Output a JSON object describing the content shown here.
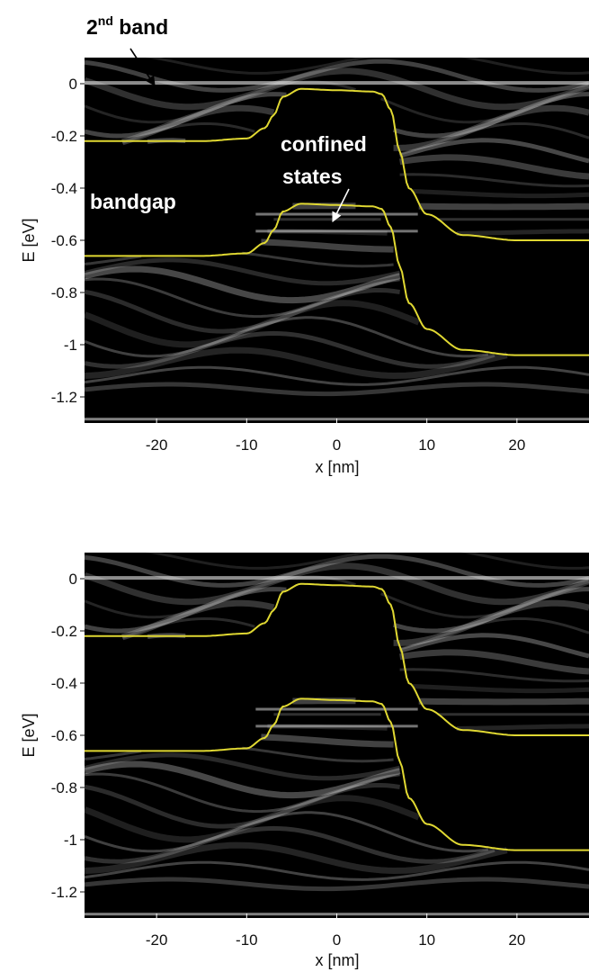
{
  "colors": {
    "band_edge": "#e0d832",
    "background": "#000000",
    "fringe": "#ffffff",
    "text": "#111111",
    "arrow_dark": "#000000",
    "arrow_light": "#ffffff"
  },
  "annotations": {
    "second_band": {
      "main": "2",
      "sup": "nd",
      "rest": " band"
    },
    "bandgap": "bandgap",
    "confined_line1": "confined",
    "confined_line2": "states"
  },
  "chart_data": [
    {
      "type": "heatmap",
      "title": "",
      "xlabel": "x [nm]",
      "ylabel": "E [eV]",
      "xlim": [
        -28,
        28
      ],
      "ylim": [
        -1.3,
        0.1
      ],
      "x_ticks": [
        -20,
        -10,
        0,
        10,
        20
      ],
      "x_tick_labels": [
        "-20",
        "-10",
        "0",
        "10",
        "20"
      ],
      "y_ticks": [
        0,
        -0.2,
        -0.4,
        -0.6,
        -0.8,
        -1,
        -1.2
      ],
      "y_tick_labels": [
        "0",
        "-0.2",
        "-0.4",
        "-0.6",
        "-0.8",
        "-1",
        "-1.2"
      ],
      "grid": false,
      "series": [
        {
          "x": [
            -28,
            -15,
            -10,
            -8,
            -7,
            -6,
            -4,
            0,
            4,
            5,
            6,
            7,
            8,
            10,
            14,
            20,
            28
          ],
          "y": [
            -0.22,
            -0.22,
            -0.21,
            -0.17,
            -0.12,
            -0.05,
            -0.02,
            -0.025,
            -0.03,
            -0.04,
            -0.1,
            -0.26,
            -0.4,
            -0.5,
            -0.58,
            -0.6,
            -0.6
          ]
        },
        {
          "x": [
            -28,
            -15,
            -10,
            -8,
            -7,
            -6,
            -4,
            0,
            4,
            5,
            6,
            7,
            8,
            10,
            14,
            20,
            28
          ],
          "y": [
            -0.66,
            -0.66,
            -0.65,
            -0.61,
            -0.56,
            -0.49,
            -0.46,
            -0.465,
            -0.47,
            -0.48,
            -0.55,
            -0.7,
            -0.84,
            -0.94,
            -1.02,
            -1.04,
            -1.04
          ]
        }
      ]
    },
    {
      "type": "heatmap",
      "title": "",
      "xlabel": "x [nm]",
      "ylabel": "E [eV]",
      "xlim": [
        -28,
        28
      ],
      "ylim": [
        -1.3,
        0.1
      ],
      "x_ticks": [
        -20,
        -10,
        0,
        10,
        20
      ],
      "x_tick_labels": [
        "-20",
        "-10",
        "0",
        "10",
        "20"
      ],
      "y_ticks": [
        0,
        -0.2,
        -0.4,
        -0.6,
        -0.8,
        -1,
        -1.2
      ],
      "y_tick_labels": [
        "0",
        "-0.2",
        "-0.4",
        "-0.6",
        "-0.8",
        "-1",
        "-1.2"
      ],
      "grid": false,
      "series": [
        {
          "x": [
            -28,
            -15,
            -10,
            -8,
            -7,
            -6,
            -4,
            0,
            4,
            5,
            6,
            7,
            8,
            10,
            14,
            20,
            28
          ],
          "y": [
            -0.22,
            -0.22,
            -0.21,
            -0.17,
            -0.12,
            -0.05,
            -0.02,
            -0.025,
            -0.03,
            -0.04,
            -0.1,
            -0.26,
            -0.4,
            -0.5,
            -0.58,
            -0.6,
            -0.6
          ]
        },
        {
          "x": [
            -28,
            -15,
            -10,
            -8,
            -7,
            -6,
            -4,
            0,
            4,
            5,
            6,
            7,
            8,
            10,
            14,
            20,
            28
          ],
          "y": [
            -0.66,
            -0.66,
            -0.65,
            -0.61,
            -0.56,
            -0.49,
            -0.46,
            -0.465,
            -0.47,
            -0.48,
            -0.55,
            -0.7,
            -0.84,
            -0.94,
            -1.02,
            -1.04,
            -1.04
          ]
        }
      ]
    }
  ]
}
